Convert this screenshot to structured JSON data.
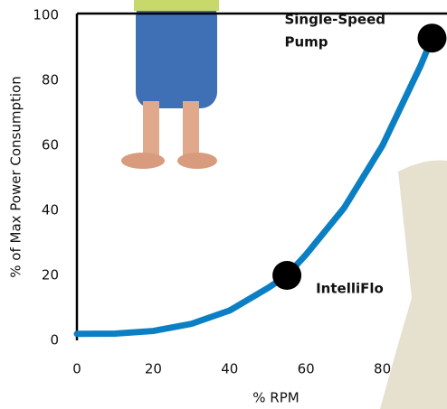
{
  "chart_data": {
    "type": "line",
    "xlabel": "% RPM",
    "ylabel": "% of Max Power Consumption",
    "xlim": [
      0,
      100
    ],
    "ylim": [
      0,
      100
    ],
    "xticks": [
      0,
      20,
      40,
      60,
      80
    ],
    "yticks": [
      0,
      20,
      40,
      60,
      80,
      100
    ],
    "series": [
      {
        "color": "#0b7fc4",
        "x": [
          0,
          10,
          20,
          30,
          40,
          50,
          55,
          60,
          70,
          80,
          90,
          93
        ],
        "values": [
          2,
          2.1,
          2.9,
          5.1,
          9.2,
          16.1,
          20,
          26.4,
          40.8,
          59.9,
          84.5,
          93
        ]
      }
    ],
    "points": [
      {
        "label": [
          "Single-Speed",
          "Pump"
        ],
        "x": 93,
        "y": 93
      },
      {
        "label": [
          "IntelliFlo"
        ],
        "x": 55,
        "y": 20
      }
    ]
  }
}
